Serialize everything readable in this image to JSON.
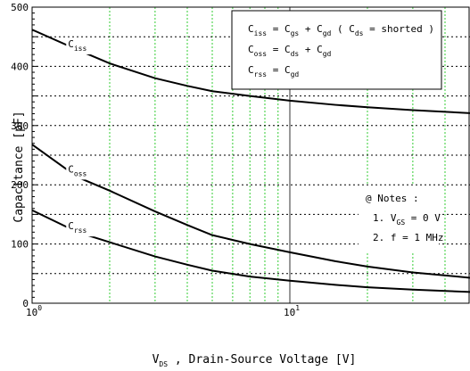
{
  "chart_data": {
    "type": "line",
    "xscale": "log",
    "xlim": [
      1,
      50
    ],
    "ylim": [
      0,
      500
    ],
    "grid": true,
    "ylabel": "Capacitance [pF]",
    "xlabel": {
      "main": "V",
      "sub": "DS",
      "rest": " , Drain-Source Voltage [V]"
    },
    "xticks": [
      {
        "value": 1,
        "base": "10",
        "exp": "0"
      },
      {
        "value": 10,
        "base": "10",
        "exp": "1"
      }
    ],
    "yticks": [
      "0",
      "100",
      "200",
      "300",
      "400",
      "500"
    ],
    "legend_box": [
      [
        [
          "C"
        ],
        [
          "iss",
          "sub"
        ],
        [
          " = C"
        ],
        [
          "gs",
          "sub"
        ],
        [
          " + C"
        ],
        [
          "gd",
          "sub"
        ],
        [
          " ( C"
        ],
        [
          "ds",
          "sub"
        ],
        [
          " = shorted )"
        ]
      ],
      [
        [
          "C"
        ],
        [
          "oss",
          "sub"
        ],
        [
          " = C"
        ],
        [
          "ds",
          "sub"
        ],
        [
          " + C"
        ],
        [
          "gd",
          "sub"
        ]
      ],
      [
        [
          "C"
        ],
        [
          "rss",
          "sub"
        ],
        [
          " = C"
        ],
        [
          "gd",
          "sub"
        ]
      ]
    ],
    "notes": [
      [
        [
          "@ Notes :"
        ]
      ],
      [
        [
          "1. V"
        ],
        [
          "GS",
          "sub"
        ],
        [
          " = 0 V"
        ]
      ],
      [
        [
          "2. f = 1 MHz"
        ]
      ]
    ],
    "series": [
      {
        "name": "iss",
        "label": [
          [
            "C"
          ],
          [
            "iss",
            "sub"
          ]
        ],
        "label_x": 1.4,
        "x": [
          1,
          1.5,
          2,
          3,
          4,
          5,
          7,
          10,
          15,
          20,
          30,
          50
        ],
        "y": [
          462,
          428,
          405,
          380,
          367,
          358,
          350,
          342,
          335,
          331,
          326,
          321
        ]
      },
      {
        "name": "oss",
        "label": [
          [
            "C"
          ],
          [
            "oss",
            "sub"
          ]
        ],
        "label_x": 1.4,
        "x": [
          1,
          1.5,
          2,
          3,
          4,
          5,
          7,
          10,
          15,
          20,
          30,
          50
        ],
        "y": [
          268,
          213,
          190,
          155,
          132,
          115,
          100,
          86,
          71,
          62,
          52,
          43
        ]
      },
      {
        "name": "rss",
        "label": [
          [
            "C"
          ],
          [
            "rss",
            "sub"
          ]
        ],
        "label_x": 1.4,
        "x": [
          1,
          1.5,
          2,
          3,
          4,
          5,
          7,
          10,
          15,
          20,
          30,
          50
        ],
        "y": [
          157,
          120,
          103,
          79,
          65,
          55,
          45,
          38,
          31,
          27,
          23,
          19
        ]
      }
    ]
  }
}
